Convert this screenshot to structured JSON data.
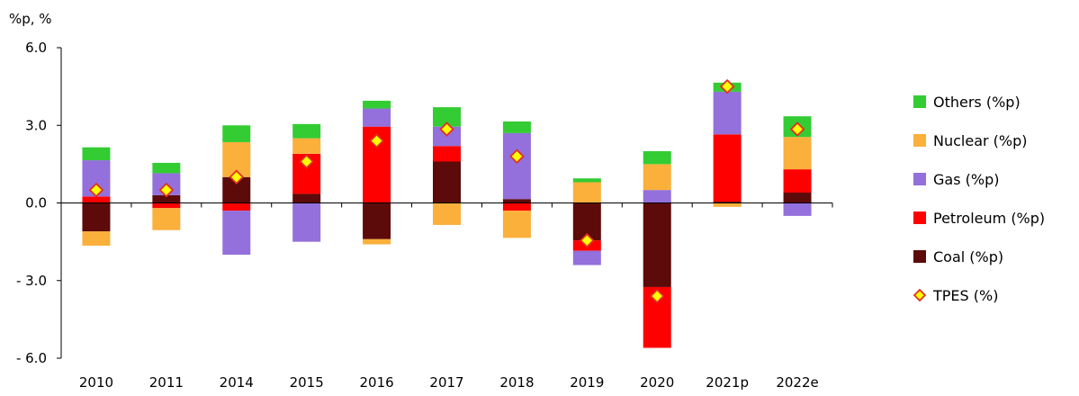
{
  "chart_data": {
    "type": "bar",
    "stacked": true,
    "unit_label": "%p, %",
    "categories": [
      "2010",
      "2011",
      "2014",
      "2015",
      "2016",
      "2017",
      "2018",
      "2019",
      "2020",
      "2021p",
      "2022e"
    ],
    "y_ticks": [
      "6.0",
      "3.0",
      "0.0",
      "- 3.0",
      "- 6.0"
    ],
    "ylim": [
      -6,
      6
    ],
    "grid": false,
    "legend_position": "right",
    "series": [
      {
        "name": "Coal (%p)",
        "color": "#5C0A0A",
        "values": [
          -1.1,
          0.3,
          1.0,
          0.35,
          -1.4,
          1.6,
          0.15,
          -1.45,
          -3.25,
          0.05,
          0.4
        ]
      },
      {
        "name": "Petroleum (%p)",
        "color": "#FF0000",
        "values": [
          0.25,
          -0.2,
          -0.3,
          1.55,
          2.95,
          0.6,
          -0.3,
          -0.4,
          -2.35,
          2.6,
          0.9
        ]
      },
      {
        "name": "Gas (%p)",
        "color": "#9370DB",
        "values": [
          1.4,
          0.85,
          -1.7,
          -1.5,
          0.7,
          0.75,
          2.55,
          -0.55,
          0.5,
          1.65,
          -0.5
        ]
      },
      {
        "name": "Nuclear (%p)",
        "color": "#FBB03B",
        "values": [
          -0.55,
          -0.85,
          1.35,
          0.6,
          -0.2,
          -0.85,
          -1.05,
          0.8,
          1.0,
          -0.15,
          1.25
        ]
      },
      {
        "name": "Others (%p)",
        "color": "#33CC33",
        "values": [
          0.5,
          0.4,
          0.65,
          0.55,
          0.3,
          0.75,
          0.45,
          0.15,
          0.5,
          0.35,
          0.8
        ]
      }
    ],
    "line_series": {
      "name": "TPES (%)",
      "marker": "diamond",
      "color": "#FFFF00",
      "edge_color": "#E03020",
      "values": [
        0.5,
        0.5,
        1.0,
        1.6,
        2.4,
        2.85,
        1.8,
        -1.45,
        -3.6,
        4.5,
        2.85
      ]
    },
    "legend_order": [
      "Others (%p)",
      "Nuclear (%p)",
      "Gas (%p)",
      "Petroleum (%p)",
      "Coal (%p)",
      "TPES (%)"
    ]
  }
}
